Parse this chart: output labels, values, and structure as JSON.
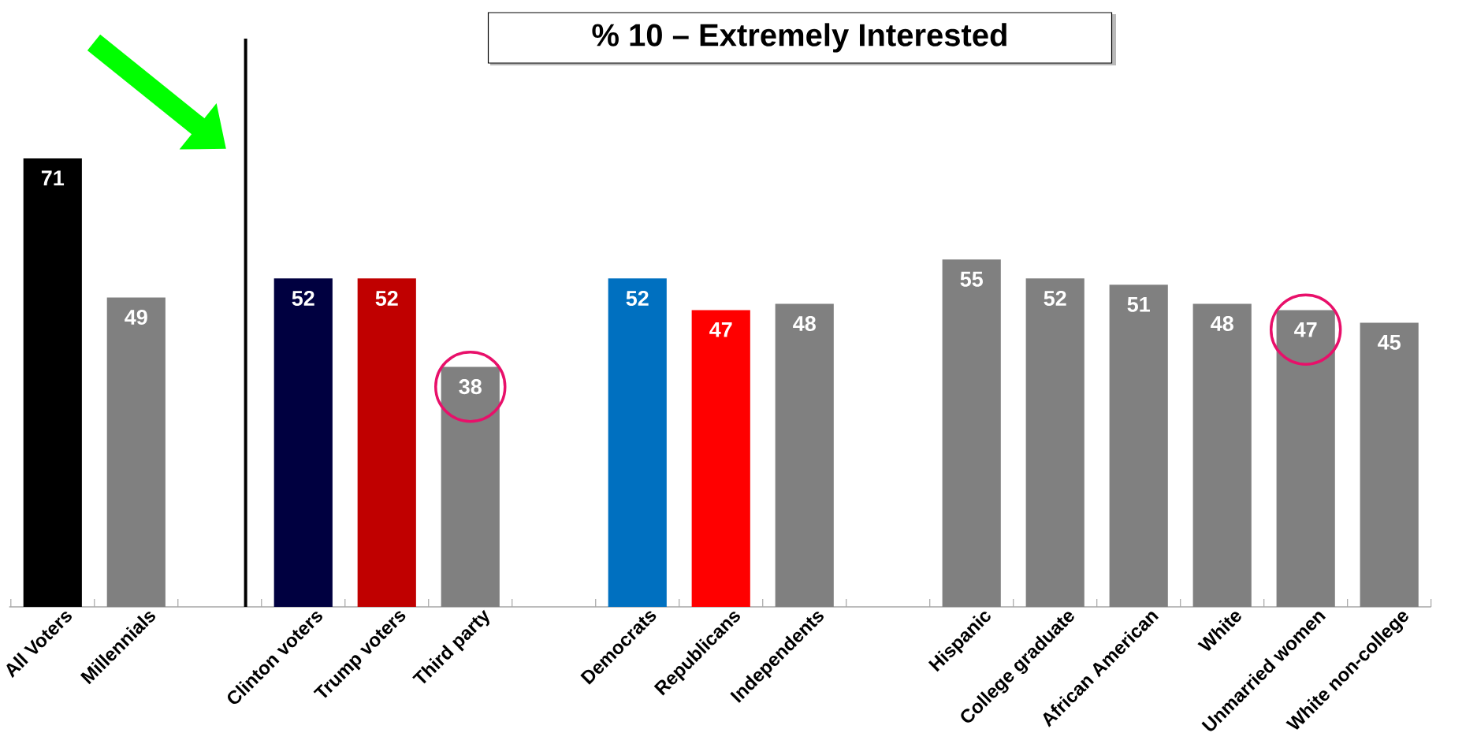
{
  "chart_data": {
    "type": "bar",
    "title": "% 10 – Extremely Interested",
    "categories": [
      "All Voters",
      "Millennials",
      null,
      "Clinton voters",
      "Trump voters",
      "Third party",
      null,
      "Democrats",
      "Republicans",
      "Independents",
      null,
      "Hispanic",
      "College graduate",
      "African American",
      "White",
      "Unmarried women",
      "White non-college"
    ],
    "values": [
      71,
      49,
      null,
      52,
      52,
      38,
      null,
      52,
      47,
      48,
      null,
      55,
      52,
      51,
      48,
      47,
      45
    ],
    "colors": [
      "#000000",
      "#808080",
      null,
      "#000040",
      "#c00000",
      "#808080",
      null,
      "#0070c0",
      "#ff0000",
      "#808080",
      null,
      "#808080",
      "#808080",
      "#808080",
      "#808080",
      "#808080",
      "#808080"
    ],
    "data_labels": true
  }
}
